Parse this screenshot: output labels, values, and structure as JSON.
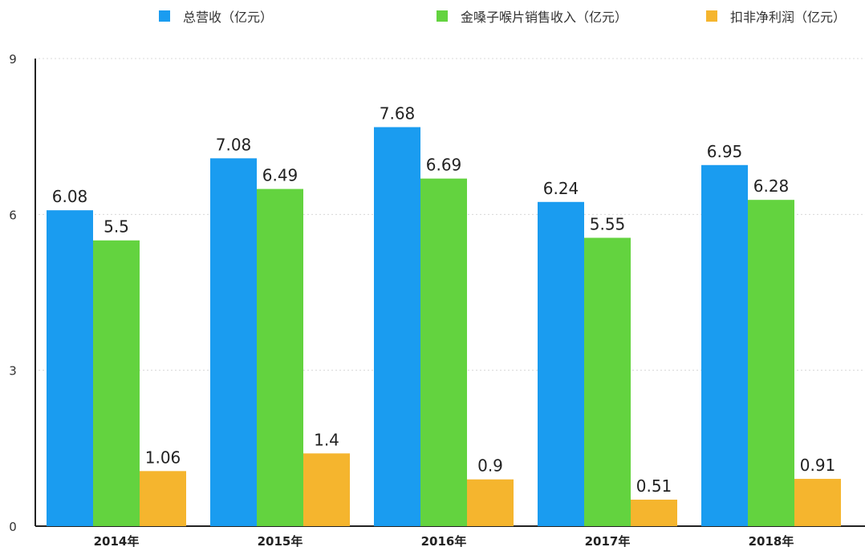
{
  "chart_data": {
    "type": "bar",
    "title": "",
    "xlabel": "",
    "ylabel": "",
    "categories": [
      "2014年",
      "2015年",
      "2016年",
      "2017年",
      "2018年"
    ],
    "series": [
      {
        "name": "总营收（亿元）",
        "color": "#1a9cf0",
        "values": [
          6.08,
          7.08,
          7.68,
          6.24,
          6.95
        ]
      },
      {
        "name": "金嗓子喉片销售收入（亿元）",
        "color": "#63d33f",
        "values": [
          5.5,
          6.49,
          6.69,
          5.55,
          6.28
        ]
      },
      {
        "name": "扣非净利润（亿元）",
        "color": "#f5b52e",
        "values": [
          1.06,
          1.4,
          0.9,
          0.51,
          0.91
        ]
      }
    ],
    "ylim": [
      0,
      9
    ],
    "yticks": [
      0,
      3,
      6,
      9
    ],
    "grid": true,
    "legend": "top",
    "data_labels": true
  }
}
